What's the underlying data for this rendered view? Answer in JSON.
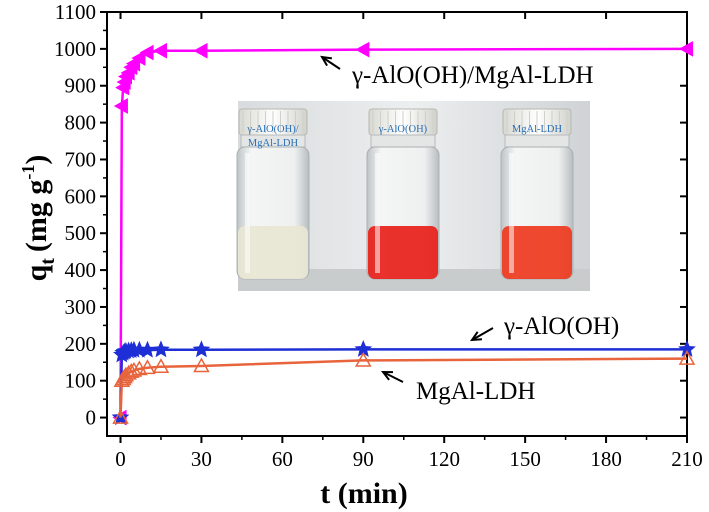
{
  "chart_data": {
    "type": "line",
    "title": "",
    "xlabel": "t (min)",
    "ylabel_main": "q",
    "ylabel_sub": "t",
    "ylabel_unit": "(mg g",
    "ylabel_sup": "-1",
    "ylabel_close": ")",
    "xlim": [
      -5,
      210
    ],
    "ylim": [
      -50,
      1100
    ],
    "xticks": [
      0,
      30,
      60,
      90,
      120,
      150,
      180,
      210
    ],
    "yticks": [
      0,
      100,
      200,
      300,
      400,
      500,
      600,
      700,
      800,
      900,
      1000,
      1100
    ],
    "grid": false,
    "series": [
      {
        "name": "γ-AlO(OH)/MgAl-LDH",
        "color": "#ff00ff",
        "marker": "triangle-left-filled",
        "x": [
          0,
          0.5,
          1,
          1.5,
          2,
          3,
          4,
          5,
          7,
          10,
          15,
          30,
          90,
          210
        ],
        "y": [
          0,
          845,
          895,
          910,
          925,
          935,
          950,
          960,
          975,
          990,
          995,
          995,
          998,
          1000
        ]
      },
      {
        "name": "γ-AlO(OH)",
        "color": "#1f2fd6",
        "marker": "star-filled",
        "x": [
          0,
          0.5,
          1,
          1.5,
          2,
          3,
          4,
          5,
          7,
          10,
          15,
          30,
          90,
          210
        ],
        "y": [
          0,
          170,
          175,
          178,
          180,
          181,
          182,
          183,
          183,
          183,
          184,
          184,
          185,
          185
        ]
      },
      {
        "name": "MgAl-LDH",
        "color": "#e8643c",
        "marker": "triangle-up-open",
        "x": [
          0,
          0.5,
          1,
          1.5,
          2,
          3,
          4,
          5,
          7,
          10,
          15,
          30,
          90,
          210
        ],
        "y": [
          0,
          100,
          105,
          110,
          115,
          120,
          125,
          128,
          132,
          135,
          138,
          140,
          155,
          160
        ]
      }
    ],
    "annotations": [
      {
        "text": "γ-AlO(OH)/MgAl-LDH",
        "points_to_series": 0
      },
      {
        "text": "γ-AlO(OH)",
        "points_to_series": 1
      },
      {
        "text": "MgAl-LDH",
        "points_to_series": 2
      }
    ],
    "inset": {
      "description_free": true,
      "vials": [
        {
          "label_line1": "γ-AlO(OH)/",
          "label_line2": "MgAl-LDH",
          "liquid": "#e8e6d2"
        },
        {
          "label_line1": "γ-AlO(OH)",
          "label_line2": "",
          "liquid": "#e8201a"
        },
        {
          "label_line1": "MgAl-LDH",
          "label_line2": "",
          "liquid": "#ee3a1e"
        }
      ]
    }
  }
}
